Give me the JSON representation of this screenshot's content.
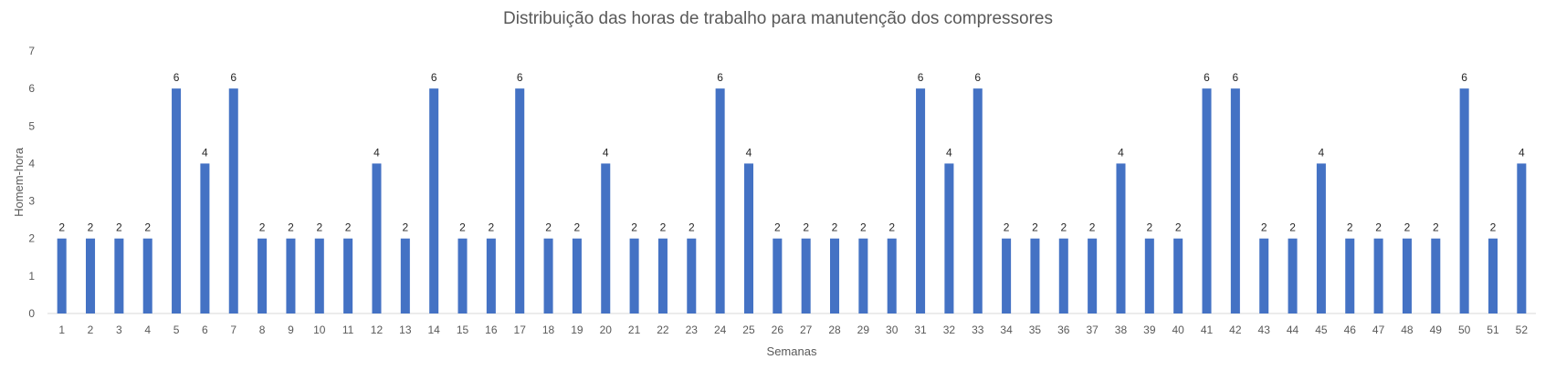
{
  "chart_data": {
    "type": "bar",
    "title": "Distribuição das horas de trabalho para manutenção dos compressores",
    "xlabel": "Semanas",
    "ylabel": "Homem-hora",
    "ylim": [
      0,
      7
    ],
    "yticks": [
      0,
      1,
      2,
      3,
      4,
      5,
      6,
      7
    ],
    "grid": false,
    "legend": "none",
    "bar_color": "#4472C4",
    "categories": [
      "1",
      "2",
      "3",
      "4",
      "5",
      "6",
      "7",
      "8",
      "9",
      "10",
      "11",
      "12",
      "13",
      "14",
      "15",
      "16",
      "17",
      "18",
      "19",
      "20",
      "21",
      "22",
      "23",
      "24",
      "25",
      "26",
      "27",
      "28",
      "29",
      "30",
      "31",
      "32",
      "33",
      "34",
      "35",
      "36",
      "37",
      "38",
      "39",
      "40",
      "41",
      "42",
      "43",
      "44",
      "45",
      "46",
      "47",
      "48",
      "49",
      "50",
      "51",
      "52"
    ],
    "values": [
      2,
      2,
      2,
      2,
      6,
      4,
      6,
      2,
      2,
      2,
      2,
      4,
      2,
      6,
      2,
      2,
      6,
      2,
      2,
      4,
      2,
      2,
      2,
      6,
      4,
      2,
      2,
      2,
      2,
      2,
      6,
      4,
      6,
      2,
      2,
      2,
      2,
      4,
      2,
      2,
      6,
      6,
      2,
      2,
      4,
      2,
      2,
      2,
      2,
      6,
      2,
      4
    ]
  }
}
